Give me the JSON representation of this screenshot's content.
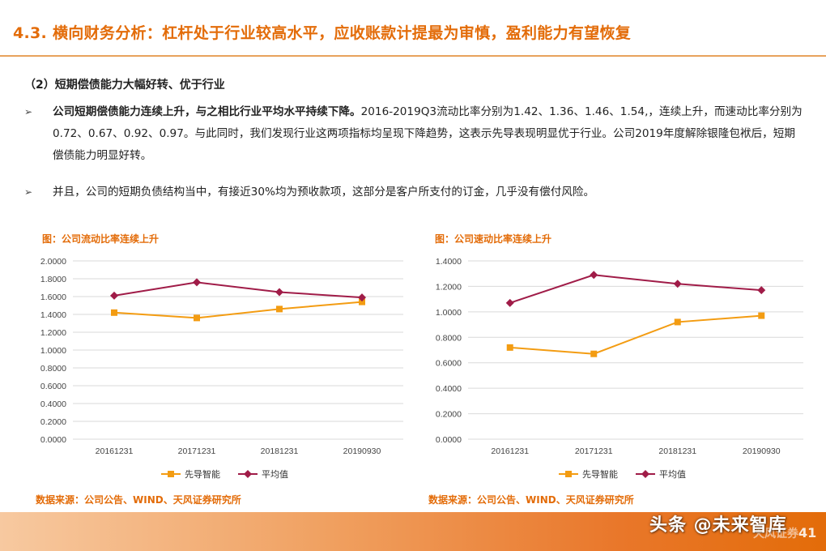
{
  "header": {
    "title": "4.3. 横向财务分析：杠杆处于行业较高水平，应收账款计提最为审慎，盈利能力有望恢复"
  },
  "section": {
    "subtitle": "（2）短期偿债能力大幅好转、优于行业",
    "bullets": [
      {
        "marker": "➢",
        "bold": "公司短期偿债能力连续上升，与之相比行业平均水平持续下降。",
        "text": "2016-2019Q3流动比率分别为1.42、1.36、1.46、1.54,，连续上升，而速动比率分别为0.72、0.67、0.92、0.97。与此同时，我们发现行业这两项指标均呈现下降趋势，这表示先导表现明显优于行业。公司2019年度解除银隆包袱后，短期偿债能力明显好转。"
      },
      {
        "marker": "➢",
        "bold": "",
        "text": "并且，公司的短期负债结构当中，有接近30%均为预收款项，这部分是客户所支付的订金，几乎没有偿付风险。"
      }
    ]
  },
  "charts": {
    "left": {
      "title": "图：公司流动比率连续上升",
      "source": "数据来源：公司公告、WIND、天风证券研究所"
    },
    "right": {
      "title": "图：公司速动比率连续上升",
      "source": "数据来源：公司公告、WIND、天风证券研究所"
    }
  },
  "footer": {
    "logo_text": "天风证券",
    "page_number": "41",
    "watermark": "头条 @未来智库"
  },
  "colors": {
    "accent": "#E36C09",
    "series_company": "#F39C12",
    "series_average": "#A01C48",
    "grid": "#D9D9D9"
  },
  "chart_data": [
    {
      "type": "line",
      "title": "图：公司流动比率连续上升",
      "categories": [
        "20161231",
        "20171231",
        "20181231",
        "20190930"
      ],
      "ylim": [
        0,
        2.0
      ],
      "yticks": [
        "0.0000",
        "0.2000",
        "0.4000",
        "0.6000",
        "0.8000",
        "1.0000",
        "1.2000",
        "1.4000",
        "1.6000",
        "1.8000",
        "2.0000"
      ],
      "grid": true,
      "legend": "bottom",
      "series": [
        {
          "name": "先导智能",
          "values": [
            1.42,
            1.36,
            1.46,
            1.54
          ],
          "marker": "square"
        },
        {
          "name": "平均值",
          "values": [
            1.61,
            1.76,
            1.65,
            1.59
          ],
          "marker": "diamond"
        }
      ]
    },
    {
      "type": "line",
      "title": "图：公司速动比率连续上升",
      "categories": [
        "20161231",
        "20171231",
        "20181231",
        "20190930"
      ],
      "ylim": [
        0,
        1.4
      ],
      "yticks": [
        "0.0000",
        "0.2000",
        "0.4000",
        "0.6000",
        "0.8000",
        "1.0000",
        "1.2000",
        "1.4000"
      ],
      "grid": true,
      "legend": "bottom",
      "series": [
        {
          "name": "先导智能",
          "values": [
            0.72,
            0.67,
            0.92,
            0.97
          ],
          "marker": "square"
        },
        {
          "name": "平均值",
          "values": [
            1.07,
            1.29,
            1.22,
            1.17
          ],
          "marker": "diamond"
        }
      ]
    }
  ]
}
